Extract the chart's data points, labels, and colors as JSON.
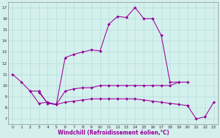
{
  "xlabel": "Windchill (Refroidissement éolien,°C)",
  "background_color": "#d4f0ed",
  "grid_color": "#b0ddd8",
  "line_color": "#990099",
  "x_ticks": [
    0,
    1,
    2,
    3,
    4,
    5,
    6,
    7,
    8,
    9,
    10,
    11,
    12,
    13,
    14,
    15,
    16,
    17,
    18,
    19,
    20,
    21,
    22,
    23
  ],
  "y_ticks": [
    7,
    8,
    9,
    10,
    11,
    12,
    13,
    14,
    15,
    16,
    17
  ],
  "xlim": [
    -0.5,
    23.5
  ],
  "ylim": [
    6.5,
    17.5
  ],
  "series": [
    {
      "x": [
        0,
        1,
        2,
        3,
        4,
        5,
        6,
        7,
        8,
        9,
        10,
        11,
        12,
        13,
        14,
        15,
        16,
        17,
        18,
        19
      ],
      "y": [
        11,
        10.3,
        9.5,
        8.4,
        8.5,
        8.3,
        12.5,
        12.8,
        13.0,
        13.2,
        13.1,
        15.5,
        16.2,
        16.1,
        17.0,
        16.0,
        16.0,
        14.5,
        10.3,
        10.3
      ]
    },
    {
      "x": [
        2,
        3,
        4,
        5,
        6,
        7,
        8,
        9,
        10,
        11,
        12,
        13,
        14,
        15,
        16,
        17,
        18,
        19,
        20
      ],
      "y": [
        9.5,
        9.5,
        8.4,
        8.3,
        9.5,
        9.7,
        9.8,
        9.8,
        10.0,
        10.0,
        10.0,
        10.0,
        10.0,
        10.0,
        10.0,
        10.0,
        10.0,
        10.3,
        10.3
      ]
    },
    {
      "x": [
        3,
        4,
        5,
        6,
        7,
        8,
        9,
        10,
        11,
        12,
        13,
        14,
        15,
        16,
        17,
        18,
        19,
        20
      ],
      "y": [
        9.4,
        8.4,
        8.3,
        8.5,
        8.6,
        8.7,
        8.8,
        8.8,
        8.8,
        8.8,
        8.8,
        8.8,
        8.7,
        8.6,
        8.5,
        8.4,
        8.3,
        8.2
      ]
    },
    {
      "x": [
        20,
        21,
        22,
        23
      ],
      "y": [
        8.2,
        7.0,
        7.2,
        8.5
      ]
    }
  ]
}
